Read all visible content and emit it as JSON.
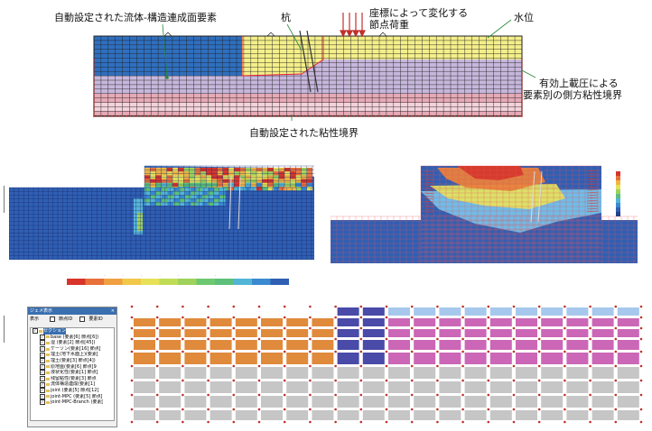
{
  "top_annotations": {
    "auto_interface": "自動設定された流体-構造連成面要素",
    "pile": "杭",
    "load_line1": "座標によって変化する",
    "load_line2": "節点荷重",
    "water_level": "水位",
    "side_line1": "有効上載圧による",
    "side_line2": "要素別の側方粘性境界",
    "bottom_boundary": "自動設定された粘性境界"
  },
  "colors": {
    "water": "#2f6fbf",
    "dry_soil": "#f4ef8a",
    "lilac": "#c7b7dc",
    "pink": "#e6a9b6",
    "lightpink": "#f3d2da",
    "mesh": "#222222",
    "orange": "#e08a3c",
    "navy": "#4a4aa8",
    "sky": "#a6c8ec",
    "magenta": "#cb67b6",
    "gray": "#c6c6c6",
    "node_red": "#c0312b"
  },
  "legend": {
    "labels": [
      "-",
      "-",
      "-",
      "-",
      "-",
      "-",
      "-",
      "-",
      "-",
      "-",
      "-",
      "-"
    ]
  },
  "tree_panel": {
    "title": "ジェメ表示",
    "close": "×",
    "display_label": "表示",
    "node_id_label": "節点ID",
    "elem_id_label": "要素ID",
    "items": [
      {
        "label": "セクション",
        "checked": true,
        "highlight": true
      },
      {
        "label": "base (要素[6] 節点[6])",
        "checked": true
      },
      {
        "label": "湿 (要素[2] 節点[45])",
        "checked": true
      },
      {
        "label": "ケーソン(要素[16] 節点[",
        "checked": true
      },
      {
        "label": "埋土(地下水面上)(要素[",
        "checked": true
      },
      {
        "label": "埋土(要素[3] 節点[4])",
        "checked": true
      },
      {
        "label": "原地盤(要素[6] 節点[9",
        "checked": true
      },
      {
        "label": "液状化性(要素[1] 節点[",
        "checked": true
      },
      {
        "label": "残留粘性(要素[3] 節点",
        "checked": true
      },
      {
        "label": "流体構造連成(要素[1]",
        "checked": true
      },
      {
        "label": "joint (要素[5] 節点[12]",
        "checked": true
      },
      {
        "label": "joint-MPC (要素[5] 節点[",
        "checked": true
      },
      {
        "label": "joint-MPC-Branch (要素[",
        "checked": true
      }
    ]
  }
}
